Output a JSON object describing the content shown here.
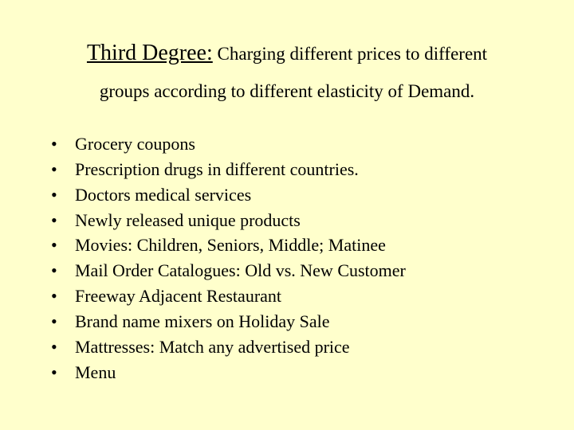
{
  "colors": {
    "background": "#ffffcc",
    "text": "#000000"
  },
  "typography": {
    "font_family": "Times New Roman",
    "title_fontsize_pt": 28,
    "subtitle_fontsize_pt": 23,
    "body_fontsize_pt": 22
  },
  "heading": {
    "title_prefix": "Third Degree:",
    "subtitle_rest": " Charging different prices to different groups according to different elasticity of Demand."
  },
  "bullets": {
    "items": [
      "Grocery coupons",
      "Prescription drugs in different countries.",
      "Doctors medical services",
      "Newly released unique products",
      "Movies: Children, Seniors, Middle; Matinee",
      "Mail Order Catalogues: Old vs. New Customer",
      "Freeway Adjacent Restaurant",
      "Brand name mixers on Holiday Sale",
      "Mattresses: Match any advertised price",
      "Menu"
    ]
  }
}
